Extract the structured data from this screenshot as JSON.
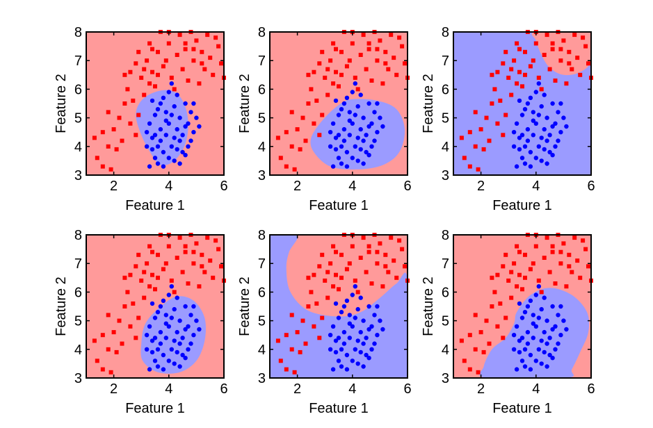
{
  "colors": {
    "red_region": "#ff9a9a",
    "blue_region": "#9b9bff",
    "red_marker": "#ff0000",
    "blue_marker": "#0000ff",
    "axis": "#000000"
  },
  "chart_data": [
    {
      "type": "scatter",
      "title": "",
      "xlabel": "Feature 1",
      "ylabel": "Feature 2",
      "xlim": [
        1,
        6
      ],
      "ylim": [
        3,
        8
      ],
      "xticks": [
        "2",
        "4",
        "6"
      ],
      "yticks": [
        "3",
        "4",
        "5",
        "6",
        "7",
        "8"
      ],
      "grid": false,
      "background_class": "red",
      "region": {
        "class": "blue",
        "shape": [
          [
            3.5,
            5.9
          ],
          [
            4.1,
            5.95
          ],
          [
            4.5,
            5.6
          ],
          [
            4.7,
            4.9
          ],
          [
            4.6,
            4.1
          ],
          [
            4.2,
            3.5
          ],
          [
            3.7,
            3.35
          ],
          [
            3.35,
            3.75
          ],
          [
            3.0,
            4.4
          ],
          [
            2.8,
            5.1
          ],
          [
            3.0,
            5.6
          ]
        ]
      }
    },
    {
      "type": "scatter",
      "title": "",
      "xlabel": "Feature 1",
      "ylabel": "Feature 2",
      "xlim": [
        1,
        6
      ],
      "ylim": [
        3,
        8
      ],
      "xticks": [
        "2",
        "4",
        "6"
      ],
      "yticks": [
        "3",
        "4",
        "5",
        "6",
        "7",
        "8"
      ],
      "grid": false,
      "background_class": "red",
      "region": {
        "class": "blue",
        "shape": [
          [
            4.0,
            5.65
          ],
          [
            4.9,
            5.6
          ],
          [
            5.6,
            5.3
          ],
          [
            5.9,
            4.6
          ],
          [
            5.7,
            3.8
          ],
          [
            5.1,
            3.35
          ],
          [
            4.2,
            3.2
          ],
          [
            3.2,
            3.3
          ],
          [
            2.6,
            3.8
          ],
          [
            2.5,
            4.3
          ],
          [
            2.9,
            4.9
          ],
          [
            3.5,
            5.45
          ]
        ]
      }
    },
    {
      "type": "scatter",
      "title": "",
      "xlabel": "Feature 1",
      "ylabel": "Feature 2",
      "xlim": [
        1,
        6
      ],
      "ylim": [
        3,
        8
      ],
      "xticks": [
        "2",
        "4",
        "6"
      ],
      "yticks": [
        "3",
        "4",
        "5",
        "6",
        "7",
        "8"
      ],
      "grid": false,
      "background_class": "blue",
      "region": {
        "class": "red",
        "shape": [
          [
            4.0,
            8.0
          ],
          [
            6.0,
            8.0
          ],
          [
            6.0,
            7.0
          ],
          [
            5.6,
            6.6
          ],
          [
            5.0,
            6.5
          ],
          [
            4.5,
            6.75
          ],
          [
            4.2,
            7.2
          ],
          [
            4.0,
            7.7
          ]
        ]
      }
    },
    {
      "type": "scatter",
      "title": "",
      "xlabel": "Feature 1",
      "ylabel": "Feature 2",
      "xlim": [
        1,
        6
      ],
      "ylim": [
        3,
        8
      ],
      "xticks": [
        "2",
        "4",
        "6"
      ],
      "yticks": [
        "3",
        "4",
        "5",
        "6",
        "7",
        "8"
      ],
      "grid": false,
      "background_class": "red",
      "region": {
        "class": "blue",
        "shape": [
          [
            3.7,
            5.5
          ],
          [
            4.3,
            5.85
          ],
          [
            4.9,
            5.7
          ],
          [
            5.3,
            5.1
          ],
          [
            5.3,
            4.3
          ],
          [
            5.0,
            3.6
          ],
          [
            4.4,
            3.2
          ],
          [
            3.6,
            3.2
          ],
          [
            3.05,
            3.6
          ],
          [
            3.0,
            4.2
          ],
          [
            3.15,
            4.9
          ]
        ]
      }
    },
    {
      "type": "scatter",
      "title": "",
      "xlabel": "Feature 1",
      "ylabel": "Feature 2",
      "xlim": [
        1,
        6
      ],
      "ylim": [
        3,
        8
      ],
      "xticks": [
        "2",
        "4",
        "6"
      ],
      "yticks": [
        "3",
        "4",
        "5",
        "6",
        "7",
        "8"
      ],
      "grid": false,
      "background_class": "red",
      "regions": [
        {
          "class": "blue",
          "shape": [
            [
              1.0,
              8.0
            ],
            [
              2.0,
              8.0
            ],
            [
              1.7,
              7.4
            ],
            [
              1.6,
              6.8
            ],
            [
              1.75,
              6.0
            ],
            [
              2.4,
              5.35
            ],
            [
              3.5,
              5.15
            ],
            [
              4.3,
              5.3
            ],
            [
              5.0,
              5.8
            ],
            [
              5.6,
              6.3
            ],
            [
              6.0,
              6.45
            ],
            [
              6.0,
              3.0
            ],
            [
              1.0,
              3.0
            ]
          ]
        }
      ]
    },
    {
      "type": "scatter",
      "title": "",
      "xlabel": "Feature 1",
      "ylabel": "Feature 2",
      "xlim": [
        1,
        6
      ],
      "ylim": [
        3,
        8
      ],
      "xticks": [
        "2",
        "4",
        "6"
      ],
      "yticks": [
        "3",
        "4",
        "5",
        "6",
        "7",
        "8"
      ],
      "grid": false,
      "background_class": "red",
      "region": {
        "class": "blue",
        "shape": [
          [
            3.3,
            5.3
          ],
          [
            3.8,
            5.9
          ],
          [
            4.5,
            6.15
          ],
          [
            5.3,
            5.9
          ],
          [
            5.85,
            5.3
          ],
          [
            5.9,
            4.6
          ],
          [
            5.6,
            3.9
          ],
          [
            5.3,
            3.3
          ],
          [
            5.1,
            3.0
          ],
          [
            2.2,
            3.0
          ],
          [
            2.1,
            3.4
          ],
          [
            2.4,
            4.0
          ],
          [
            2.9,
            4.4
          ],
          [
            3.2,
            4.9
          ]
        ]
      }
    }
  ],
  "shared_points": {
    "red": [
      [
        1.3,
        4.3
      ],
      [
        1.4,
        3.6
      ],
      [
        1.6,
        4.5
      ],
      [
        1.6,
        3.3
      ],
      [
        1.8,
        4.0
      ],
      [
        1.9,
        3.2
      ],
      [
        2.0,
        4.6
      ],
      [
        2.1,
        3.9
      ],
      [
        1.8,
        5.2
      ],
      [
        2.2,
        5.0
      ],
      [
        2.3,
        4.2
      ],
      [
        2.4,
        5.5
      ],
      [
        2.6,
        4.8
      ],
      [
        2.8,
        4.4
      ],
      [
        2.5,
        6.0
      ],
      [
        2.7,
        5.6
      ],
      [
        2.9,
        5.1
      ],
      [
        2.4,
        6.5
      ],
      [
        2.6,
        6.6
      ],
      [
        3.1,
        5.8
      ],
      [
        3.3,
        6.2
      ],
      [
        2.8,
        6.9
      ],
      [
        3.0,
        6.4
      ],
      [
        3.2,
        7.0
      ],
      [
        3.4,
        6.6
      ],
      [
        3.6,
        7.3
      ],
      [
        3.5,
        6.1
      ],
      [
        3.8,
        6.8
      ],
      [
        4.0,
        7.6
      ],
      [
        4.1,
        6.4
      ],
      [
        3.7,
        8.0
      ],
      [
        4.0,
        8.0
      ],
      [
        3.3,
        7.6
      ],
      [
        4.3,
        7.2
      ],
      [
        4.5,
        6.7
      ],
      [
        4.4,
        7.9
      ],
      [
        4.6,
        7.4
      ],
      [
        4.8,
        8.0
      ],
      [
        4.9,
        7.0
      ],
      [
        4.7,
        6.3
      ],
      [
        5.0,
        7.7
      ],
      [
        5.2,
        7.3
      ],
      [
        5.3,
        6.7
      ],
      [
        5.1,
        6.2
      ],
      [
        5.4,
        7.9
      ],
      [
        5.5,
        7.1
      ],
      [
        5.6,
        6.5
      ],
      [
        5.8,
        7.5
      ],
      [
        5.9,
        6.9
      ],
      [
        5.7,
        7.8
      ],
      [
        6.0,
        6.4
      ],
      [
        3.9,
        7.0
      ],
      [
        4.2,
        6.0
      ],
      [
        3.6,
        6.5
      ],
      [
        2.9,
        7.3
      ],
      [
        3.1,
        6.7
      ],
      [
        3.4,
        7.4
      ],
      [
        4.6,
        7.6
      ],
      [
        5.2,
        6.9
      ],
      [
        4.9,
        7.4
      ]
    ],
    "blue": [
      [
        3.3,
        3.3
      ],
      [
        3.5,
        3.6
      ],
      [
        3.2,
        4.0
      ],
      [
        3.4,
        4.3
      ],
      [
        3.6,
        4.0
      ],
      [
        3.3,
        4.8
      ],
      [
        3.5,
        5.1
      ],
      [
        3.7,
        4.6
      ],
      [
        3.8,
        3.8
      ],
      [
        3.9,
        4.4
      ],
      [
        3.7,
        5.5
      ],
      [
        3.9,
        5.2
      ],
      [
        4.0,
        4.8
      ],
      [
        4.1,
        4.0
      ],
      [
        4.2,
        3.5
      ],
      [
        4.0,
        5.9
      ],
      [
        4.2,
        5.4
      ],
      [
        4.3,
        4.6
      ],
      [
        4.4,
        4.2
      ],
      [
        4.5,
        3.8
      ],
      [
        4.4,
        5.0
      ],
      [
        4.6,
        5.5
      ],
      [
        4.6,
        4.7
      ],
      [
        4.7,
        4.0
      ],
      [
        4.8,
        5.2
      ],
      [
        4.9,
        4.5
      ],
      [
        5.0,
        5.0
      ],
      [
        4.3,
        5.8
      ],
      [
        4.1,
        6.2
      ],
      [
        3.4,
        5.6
      ],
      [
        3.6,
        3.4
      ],
      [
        3.8,
        3.3
      ],
      [
        4.0,
        3.6
      ],
      [
        3.2,
        4.5
      ],
      [
        3.5,
        4.4
      ],
      [
        3.9,
        4.9
      ],
      [
        4.2,
        4.3
      ],
      [
        4.5,
        4.4
      ],
      [
        4.7,
        4.8
      ],
      [
        4.8,
        4.2
      ],
      [
        3.6,
        5.3
      ],
      [
        3.8,
        5.7
      ],
      [
        4.1,
        5.1
      ],
      [
        4.3,
        3.9
      ],
      [
        3.4,
        3.9
      ],
      [
        4.6,
        3.7
      ],
      [
        4.9,
        5.5
      ],
      [
        5.1,
        4.7
      ],
      [
        4.4,
        3.4
      ],
      [
        3.7,
        4.2
      ]
    ]
  }
}
